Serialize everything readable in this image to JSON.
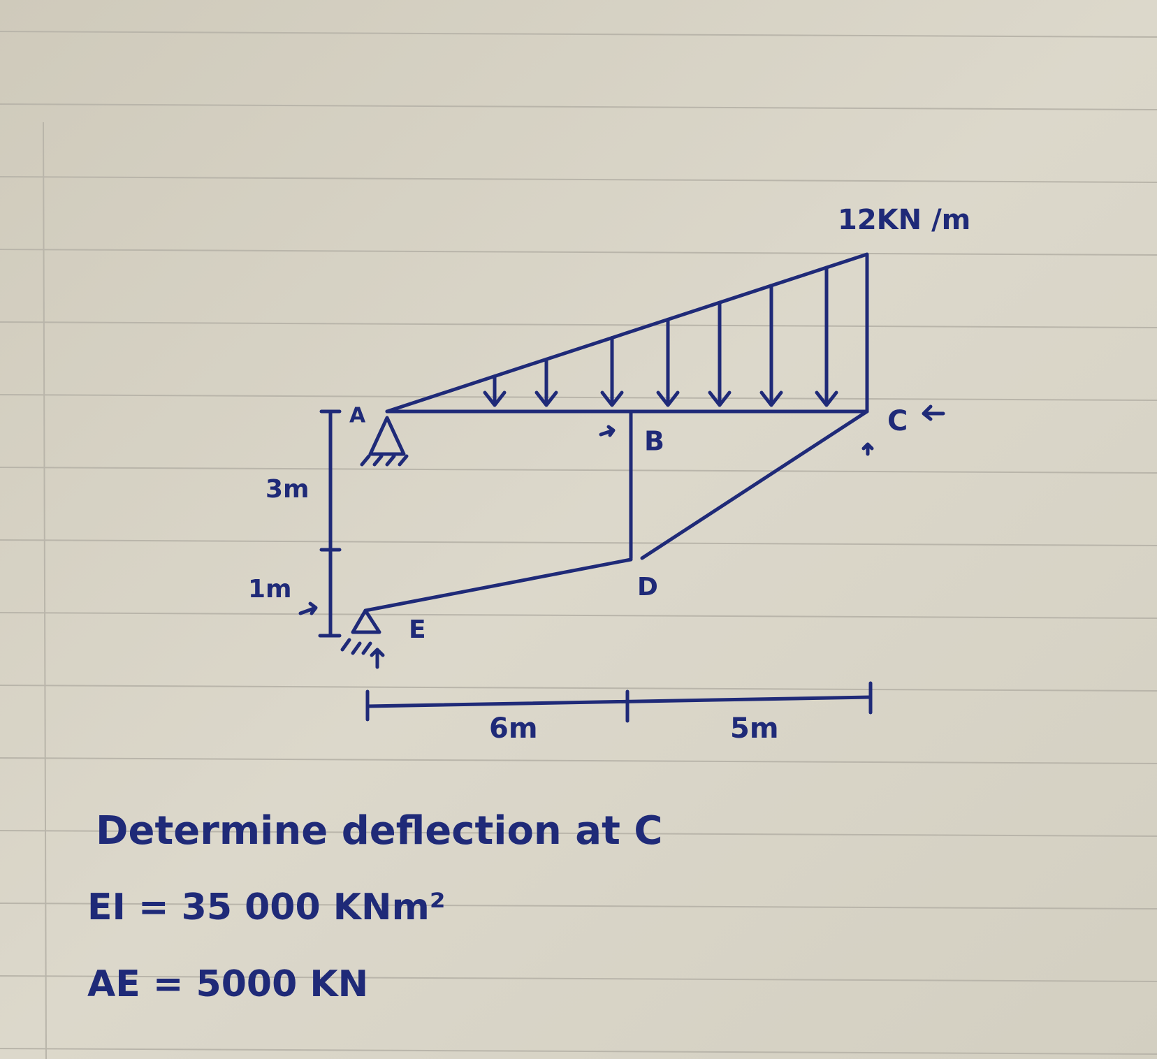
{
  "load": {
    "label": "12KN /m"
  },
  "nodes": [
    {
      "label": "A"
    },
    {
      "label": "B"
    },
    {
      "label": "C"
    },
    {
      "label": "D"
    },
    {
      "label": "E"
    }
  ],
  "dimensions": [
    {
      "label": "3m"
    },
    {
      "label": "1m"
    },
    {
      "label": "6m"
    },
    {
      "label": "5m"
    }
  ],
  "problem": {
    "statement": "Determine deflection at C",
    "given": [
      "EI = 35 000 KNm²",
      "AE = 5000 KN"
    ]
  }
}
